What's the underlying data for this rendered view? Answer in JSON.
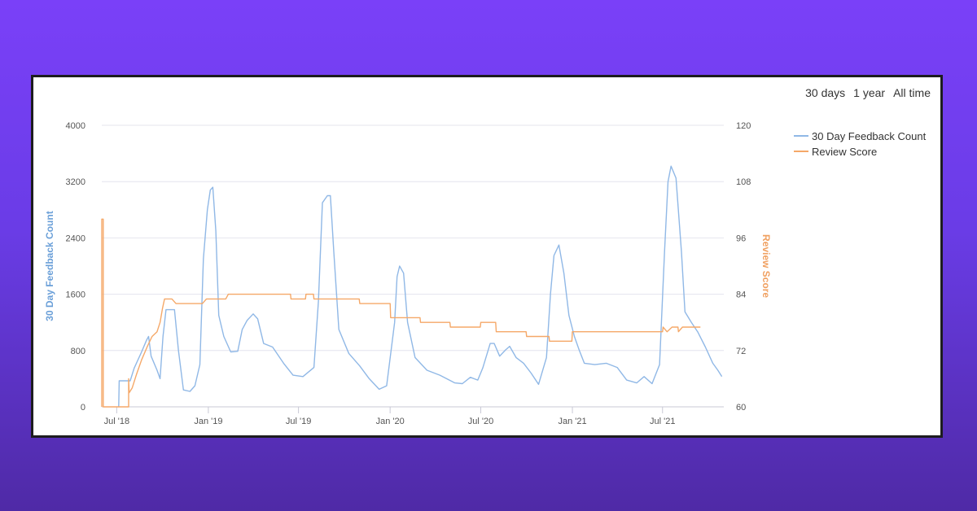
{
  "range_selector": {
    "opt_30": "30 days",
    "opt_1y": "1 year",
    "opt_all": "All time"
  },
  "chart_data": {
    "type": "line",
    "title": "",
    "x_tick_labels": [
      "Jul '18",
      "Jan '19",
      "Jul '19",
      "Jan '20",
      "Jul '20",
      "Jan '21",
      "Jul '21"
    ],
    "x_range": [
      "2018-06-01",
      "2021-11-01"
    ],
    "y_left": {
      "label": "30 Day Feedback Count",
      "ticks": [
        0,
        800,
        1600,
        2400,
        3200,
        4000
      ],
      "range": [
        0,
        4000
      ]
    },
    "y_right": {
      "label": "Review Score",
      "ticks": [
        60,
        72,
        84,
        96,
        108,
        120
      ],
      "range": [
        60,
        120
      ]
    },
    "grid": true,
    "legend_position": "right",
    "colors": {
      "feedback": "#90b8e6",
      "score": "#f5a868"
    },
    "series": [
      {
        "name": "30 Day Feedback Count",
        "axis": "left",
        "points": [
          [
            "2018-07-05",
            0
          ],
          [
            "2018-07-06",
            370
          ],
          [
            "2018-07-28",
            370
          ],
          [
            "2018-08-05",
            550
          ],
          [
            "2018-08-20",
            780
          ],
          [
            "2018-08-30",
            950
          ],
          [
            "2018-09-03",
            1000
          ],
          [
            "2018-09-08",
            720
          ],
          [
            "2018-09-20",
            520
          ],
          [
            "2018-09-26",
            400
          ],
          [
            "2018-10-02",
            1000
          ],
          [
            "2018-10-08",
            1380
          ],
          [
            "2018-10-25",
            1380
          ],
          [
            "2018-11-02",
            800
          ],
          [
            "2018-11-12",
            240
          ],
          [
            "2018-11-25",
            220
          ],
          [
            "2018-12-05",
            300
          ],
          [
            "2018-12-15",
            600
          ],
          [
            "2018-12-22",
            2100
          ],
          [
            "2018-12-30",
            2800
          ],
          [
            "2019-01-05",
            3080
          ],
          [
            "2019-01-10",
            3120
          ],
          [
            "2019-01-16",
            2500
          ],
          [
            "2019-01-22",
            1300
          ],
          [
            "2019-02-01",
            1000
          ],
          [
            "2019-02-15",
            780
          ],
          [
            "2019-03-01",
            790
          ],
          [
            "2019-03-10",
            1100
          ],
          [
            "2019-03-20",
            1230
          ],
          [
            "2019-04-01",
            1320
          ],
          [
            "2019-04-10",
            1250
          ],
          [
            "2019-04-22",
            900
          ],
          [
            "2019-05-10",
            850
          ],
          [
            "2019-06-01",
            620
          ],
          [
            "2019-06-20",
            450
          ],
          [
            "2019-07-10",
            430
          ],
          [
            "2019-08-01",
            560
          ],
          [
            "2019-08-10",
            1500
          ],
          [
            "2019-08-18",
            2900
          ],
          [
            "2019-08-28",
            3000
          ],
          [
            "2019-09-03",
            3000
          ],
          [
            "2019-09-10",
            2200
          ],
          [
            "2019-09-20",
            1100
          ],
          [
            "2019-10-10",
            760
          ],
          [
            "2019-11-01",
            580
          ],
          [
            "2019-11-20",
            400
          ],
          [
            "2019-12-10",
            250
          ],
          [
            "2019-12-25",
            300
          ],
          [
            "2020-01-10",
            1200
          ],
          [
            "2020-01-15",
            1850
          ],
          [
            "2020-01-20",
            2000
          ],
          [
            "2020-01-28",
            1900
          ],
          [
            "2020-02-05",
            1200
          ],
          [
            "2020-02-20",
            700
          ],
          [
            "2020-03-15",
            520
          ],
          [
            "2020-04-10",
            450
          ],
          [
            "2020-05-10",
            340
          ],
          [
            "2020-05-25",
            330
          ],
          [
            "2020-06-10",
            420
          ],
          [
            "2020-06-25",
            380
          ],
          [
            "2020-07-05",
            550
          ],
          [
            "2020-07-20",
            900
          ],
          [
            "2020-07-28",
            900
          ],
          [
            "2020-08-08",
            720
          ],
          [
            "2020-08-20",
            810
          ],
          [
            "2020-08-28",
            860
          ],
          [
            "2020-09-10",
            700
          ],
          [
            "2020-09-25",
            620
          ],
          [
            "2020-10-10",
            480
          ],
          [
            "2020-10-25",
            320
          ],
          [
            "2020-11-10",
            700
          ],
          [
            "2020-11-18",
            1600
          ],
          [
            "2020-11-25",
            2150
          ],
          [
            "2020-12-05",
            2300
          ],
          [
            "2020-12-15",
            1900
          ],
          [
            "2020-12-25",
            1300
          ],
          [
            "2021-01-05",
            1000
          ],
          [
            "2021-01-15",
            800
          ],
          [
            "2021-01-25",
            620
          ],
          [
            "2021-02-15",
            600
          ],
          [
            "2021-03-10",
            620
          ],
          [
            "2021-04-01",
            560
          ],
          [
            "2021-04-20",
            380
          ],
          [
            "2021-05-10",
            340
          ],
          [
            "2021-05-25",
            430
          ],
          [
            "2021-06-10",
            330
          ],
          [
            "2021-06-25",
            600
          ],
          [
            "2021-07-05",
            2200
          ],
          [
            "2021-07-12",
            3200
          ],
          [
            "2021-07-18",
            3420
          ],
          [
            "2021-07-28",
            3250
          ],
          [
            "2021-08-08",
            2200
          ],
          [
            "2021-08-15",
            1350
          ],
          [
            "2021-08-28",
            1200
          ],
          [
            "2021-09-10",
            1060
          ],
          [
            "2021-09-25",
            850
          ],
          [
            "2021-10-10",
            620
          ],
          [
            "2021-10-20",
            520
          ],
          [
            "2021-10-28",
            430
          ]
        ]
      },
      {
        "name": "Review Score",
        "axis": "right",
        "points": [
          [
            "2018-06-01",
            60
          ],
          [
            "2018-06-01",
            100
          ],
          [
            "2018-06-04",
            100
          ],
          [
            "2018-06-04",
            60
          ],
          [
            "2018-07-25",
            60
          ],
          [
            "2018-07-25",
            66
          ],
          [
            "2018-07-26",
            63
          ],
          [
            "2018-08-01",
            64
          ],
          [
            "2018-08-10",
            67
          ],
          [
            "2018-08-20",
            70
          ],
          [
            "2018-09-01",
            73
          ],
          [
            "2018-09-10",
            75
          ],
          [
            "2018-09-20",
            76
          ],
          [
            "2018-09-26",
            78
          ],
          [
            "2018-10-01",
            81
          ],
          [
            "2018-10-05",
            83
          ],
          [
            "2018-10-20",
            83
          ],
          [
            "2018-10-28",
            82
          ],
          [
            "2018-12-20",
            82
          ],
          [
            "2018-12-28",
            83
          ],
          [
            "2019-02-05",
            83
          ],
          [
            "2019-02-10",
            84
          ],
          [
            "2019-06-15",
            84
          ],
          [
            "2019-06-16",
            83
          ],
          [
            "2019-07-15",
            83
          ],
          [
            "2019-07-16",
            84
          ],
          [
            "2019-07-31",
            84
          ],
          [
            "2019-08-01",
            83
          ],
          [
            "2019-10-31",
            83
          ],
          [
            "2019-11-01",
            82
          ],
          [
            "2020-01-01",
            82
          ],
          [
            "2020-01-02",
            79
          ],
          [
            "2020-03-01",
            79
          ],
          [
            "2020-03-02",
            78
          ],
          [
            "2020-04-30",
            78
          ],
          [
            "2020-05-01",
            77
          ],
          [
            "2020-06-30",
            77
          ],
          [
            "2020-07-01",
            78
          ],
          [
            "2020-07-31",
            78
          ],
          [
            "2020-08-01",
            76
          ],
          [
            "2020-09-30",
            76
          ],
          [
            "2020-10-01",
            75
          ],
          [
            "2020-11-15",
            75
          ],
          [
            "2020-11-16",
            74
          ],
          [
            "2020-12-31",
            74
          ],
          [
            "2021-01-01",
            76
          ],
          [
            "2021-07-01",
            76
          ],
          [
            "2021-07-02",
            77
          ],
          [
            "2021-07-10",
            76
          ],
          [
            "2021-07-20",
            77
          ],
          [
            "2021-08-01",
            77
          ],
          [
            "2021-08-02",
            76
          ],
          [
            "2021-08-10",
            77
          ],
          [
            "2021-09-15",
            77
          ]
        ]
      }
    ]
  }
}
